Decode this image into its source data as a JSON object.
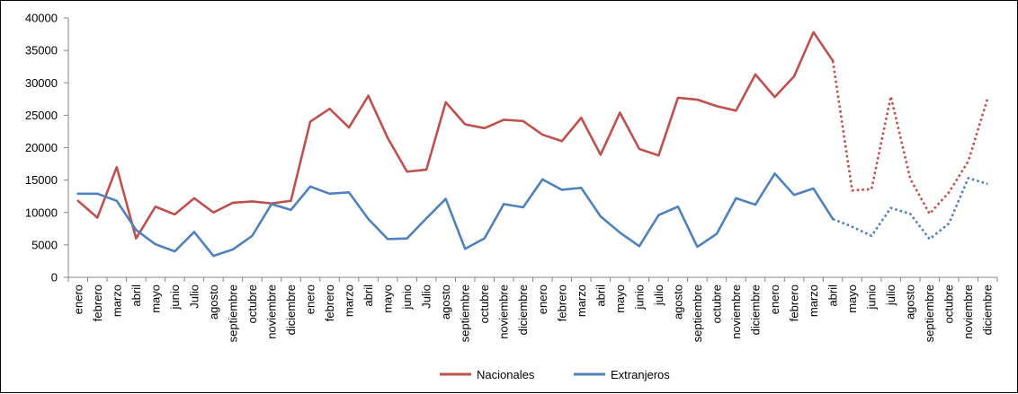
{
  "chart_data": {
    "type": "line",
    "title": "",
    "xlabel": "",
    "ylabel": "",
    "ylim": [
      0,
      40000
    ],
    "yticks": [
      0,
      5000,
      10000,
      15000,
      20000,
      25000,
      30000,
      35000,
      40000
    ],
    "grid": false,
    "legend_position": "bottom",
    "categories": [
      "enero",
      "febrero",
      "marzo",
      "abril",
      "mayo",
      "junio",
      "Julio",
      "agosto",
      "septiembre",
      "octubre",
      "noviembre",
      "diciembre",
      "enero",
      "febrero",
      "marzo",
      "abril",
      "mayo",
      "junio",
      "Julio",
      "agosto",
      "septiembre",
      "octubre",
      "noviembre",
      "diciembre",
      "enero",
      "febrero",
      "marzo",
      "abril",
      "mayo",
      "junio",
      "julio",
      "agosto",
      "septiembre",
      "octubre",
      "noviembre",
      "diciembre",
      "enero",
      "febrero",
      "marzo",
      "abril",
      "mayo",
      "junio",
      "julio",
      "agosto",
      "septiembre",
      "octubre",
      "noviembre",
      "diciembre"
    ],
    "projection_start_index": 39,
    "series": [
      {
        "name": "Nacionales",
        "color": "#C0504D",
        "values": [
          11800,
          9200,
          17000,
          6000,
          10900,
          9700,
          12200,
          10000,
          11500,
          11700,
          11400,
          11800,
          24000,
          26000,
          23100,
          28000,
          21500,
          16300,
          16600,
          27000,
          23600,
          23000,
          24300,
          24100,
          22000,
          21000,
          24600,
          18900,
          25400,
          19800,
          18800,
          27700,
          27400,
          26400,
          25700,
          31300,
          27800,
          31000,
          37800,
          33400,
          13400,
          13600,
          27900,
          15200,
          9800,
          13100,
          17900,
          27600
        ]
      },
      {
        "name": "Extranjeros",
        "color": "#4F81BD",
        "values": [
          12900,
          12900,
          11800,
          7300,
          5100,
          4000,
          7000,
          3300,
          4300,
          6400,
          11300,
          10400,
          14000,
          12900,
          13100,
          9000,
          5900,
          6000,
          9100,
          12100,
          4400,
          6000,
          11300,
          10800,
          15100,
          13500,
          13800,
          9400,
          6900,
          4800,
          9600,
          10900,
          4700,
          6700,
          12200,
          11200,
          16000,
          12700,
          13700,
          9000,
          7800,
          6400,
          10700,
          9800,
          5900,
          8300,
          15300,
          14400
        ]
      }
    ]
  }
}
